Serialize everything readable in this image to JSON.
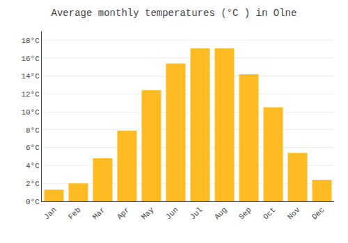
{
  "chart_data": {
    "type": "bar",
    "title": "Average monthly temperatures (°C ) in Olne",
    "categories": [
      "Jan",
      "Feb",
      "Mar",
      "Apr",
      "May",
      "Jun",
      "Jul",
      "Aug",
      "Sep",
      "Oct",
      "Nov",
      "Dec"
    ],
    "values": [
      1.3,
      2.0,
      4.8,
      7.9,
      12.4,
      15.4,
      17.1,
      17.1,
      14.2,
      10.5,
      5.4,
      2.4
    ],
    "color": "#FFBB22",
    "ylim": [
      0,
      19
    ],
    "yticks": [
      {
        "value": 0,
        "label": "0°C"
      },
      {
        "value": 2,
        "label": "2°C"
      },
      {
        "value": 4,
        "label": "4°C"
      },
      {
        "value": 6,
        "label": "6°C"
      },
      {
        "value": 8,
        "label": "8°C"
      },
      {
        "value": 10,
        "label": "10°C"
      },
      {
        "value": 12,
        "label": "12°C"
      },
      {
        "value": 14,
        "label": "14°C"
      },
      {
        "value": 16,
        "label": "16°C"
      },
      {
        "value": 18,
        "label": "18°C"
      }
    ],
    "grid": true
  }
}
